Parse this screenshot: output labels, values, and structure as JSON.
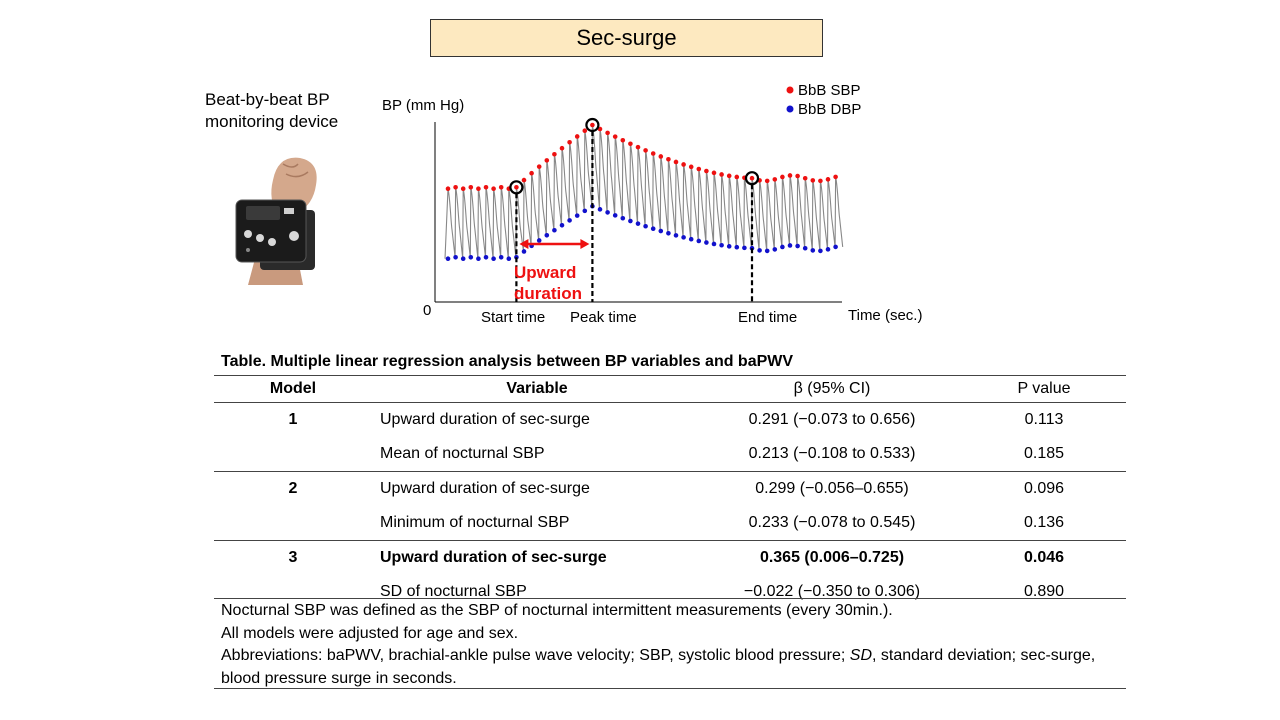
{
  "title": "Sec-surge",
  "device": {
    "label_line1": "Beat-by-beat BP",
    "label_line2": "monitoring device",
    "photo_icon": "wrist-bp-monitor-icon"
  },
  "chart_data": {
    "type": "line",
    "ylabel": "BP (mm Hg)",
    "xlabel": "Time (sec.)",
    "origin_label": "0",
    "legend": [
      "BbB SBP",
      "BbB DBP"
    ],
    "legend_position": "top-right",
    "colors": {
      "sbp": "#ee1111",
      "dbp": "#1111cc",
      "waveform": "#888888",
      "arrow": "#ee1111"
    },
    "markers": {
      "start": "Start time",
      "peak": "Peak time",
      "end": "End time"
    },
    "annotation_line1": "Upward",
    "annotation_line2": "duration",
    "series": [
      {
        "name": "BbB SBP",
        "beats": 52,
        "baseline": 0.55,
        "peak": 1.0,
        "end": 0.62
      },
      {
        "name": "BbB DBP",
        "beats": 52,
        "baseline": 0.05,
        "peak": 0.42,
        "end": 0.12
      }
    ],
    "phase_beats": {
      "start": 9,
      "peak": 19,
      "end": 40
    }
  },
  "table": {
    "caption": "Table. Multiple linear regression analysis between BP variables and baPWV",
    "headers": {
      "model": "Model",
      "variable": "Variable",
      "beta": "β (95% CI)",
      "p": "P value"
    },
    "rows": [
      {
        "model": "1",
        "variable": "Upward duration of sec-surge",
        "beta": "0.291 (−0.073 to 0.656)",
        "p": "0.113"
      },
      {
        "model": "",
        "variable": "Mean of nocturnal SBP",
        "beta": "0.213 (−0.108 to 0.533)",
        "p": "0.185"
      },
      {
        "model": "2",
        "variable": "Upward duration of sec-surge",
        "beta": "0.299 (−0.056–0.655)",
        "p": "0.096"
      },
      {
        "model": "",
        "variable": "Minimum of nocturnal SBP",
        "beta": "0.233 (−0.078 to 0.545)",
        "p": "0.136"
      },
      {
        "model": "3",
        "variable": "Upward duration of sec-surge",
        "beta": "0.365 (0.006–0.725)",
        "p": "0.046"
      },
      {
        "model": "",
        "variable": "SD of nocturnal SBP",
        "beta": "−0.022 (−0.350 to 0.306)",
        "p": "0.890"
      }
    ]
  },
  "notes": {
    "line1": "Nocturnal SBP was defined as the SBP of nocturnal intermittent measurements (every 30min.).",
    "line2": "All models were adjusted for age and sex.",
    "line3a": "Abbreviations: baPWV, brachial-ankle pulse wave velocity; SBP, systolic blood pressure; ",
    "line3_sd": "SD",
    "line3b": ", standard deviation; sec-surge, blood pressure surge in seconds."
  }
}
